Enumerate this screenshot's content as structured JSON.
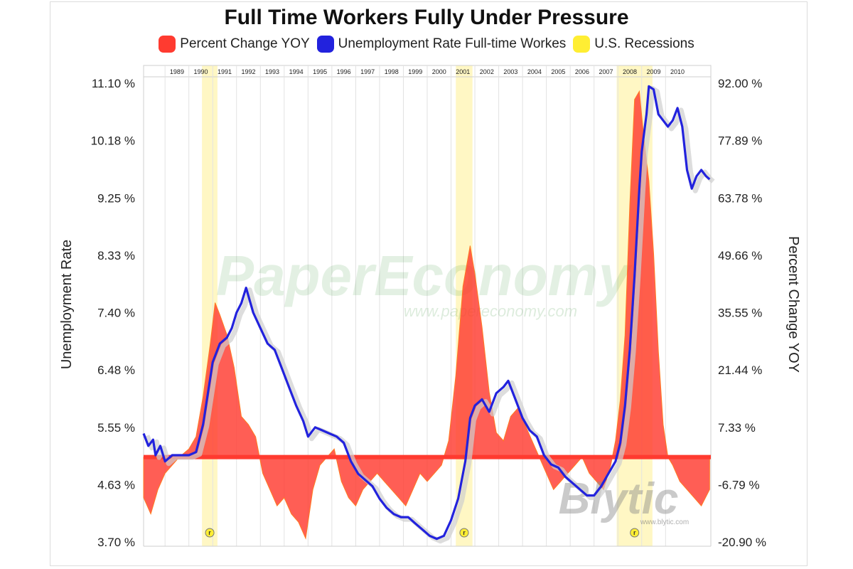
{
  "chart_data": {
    "type": "line",
    "title": "Full Time Workers Fully Under Pressure",
    "legend": [
      {
        "label": "Percent Change YOY",
        "color": "#ff3b30"
      },
      {
        "label": "Unemployment Rate Full-time Workes",
        "color": "#2222dd"
      },
      {
        "label": "U.S. Recessions",
        "color": "#ffee33"
      }
    ],
    "legend_placement": "top",
    "ylabel_left": "Unemployment Rate",
    "ylabel_right": "Percent Change YOY",
    "left_ticks": [
      "11.10 %",
      "10.18 %",
      "9.25 %",
      "8.33 %",
      "7.40 %",
      "6.48 %",
      "5.55 %",
      "4.63 %",
      "3.70 %"
    ],
    "right_ticks": [
      "92.00 %",
      "77.89 %",
      "63.78 %",
      "49.66 %",
      "35.55 %",
      "21.44 %",
      "7.33 %",
      "-6.79 %",
      "-20.90 %"
    ],
    "ylim_left": [
      3.7,
      11.1
    ],
    "ylim_right": [
      -20.9,
      92.0
    ],
    "x_range": [
      1988.1,
      2011.9
    ],
    "years": [
      "1989",
      "1990",
      "1991",
      "1992",
      "1993",
      "1994",
      "1995",
      "1996",
      "1997",
      "1998",
      "1999",
      "2000",
      "2001",
      "2002",
      "2003",
      "2004",
      "2005",
      "2006",
      "2007",
      "2008",
      "2009",
      "2010"
    ],
    "recessions": [
      [
        1990.55,
        1991.2
      ],
      [
        2001.2,
        2001.9
      ],
      [
        2007.95,
        2009.45
      ]
    ],
    "recession_marker": "r",
    "series": [
      {
        "name": "Unemployment Rate Full-time Workes",
        "axis": "left",
        "color": "#2222dd",
        "x": [
          1988.1,
          1988.3,
          1988.5,
          1988.6,
          1988.8,
          1989.0,
          1989.3,
          1989.5,
          1989.8,
          1990.0,
          1990.3,
          1990.6,
          1990.8,
          1991.0,
          1991.3,
          1991.6,
          1991.8,
          1992.0,
          1992.2,
          1992.4,
          1992.7,
          1993.0,
          1993.3,
          1993.6,
          1993.9,
          1994.2,
          1994.5,
          1994.8,
          1995.0,
          1995.3,
          1995.6,
          1995.9,
          1996.2,
          1996.5,
          1996.8,
          1997.1,
          1997.4,
          1997.7,
          1998.0,
          1998.3,
          1998.6,
          1998.9,
          1999.2,
          1999.5,
          1999.8,
          2000.1,
          2000.4,
          2000.7,
          2001.0,
          2001.3,
          2001.6,
          2001.8,
          2002.0,
          2002.3,
          2002.6,
          2002.9,
          2003.2,
          2003.4,
          2003.7,
          2004.0,
          2004.3,
          2004.6,
          2004.9,
          2005.2,
          2005.5,
          2005.8,
          2006.1,
          2006.4,
          2006.7,
          2007.0,
          2007.3,
          2007.6,
          2007.9,
          2008.1,
          2008.3,
          2008.5,
          2008.7,
          2008.9,
          2009.0,
          2009.2,
          2009.3,
          2009.5,
          2009.7,
          2009.9,
          2010.1,
          2010.3,
          2010.5,
          2010.7,
          2010.9,
          2011.1,
          2011.3,
          2011.5,
          2011.7,
          2011.85
        ],
        "y": [
          5.45,
          5.25,
          5.35,
          5.1,
          5.25,
          5.0,
          5.1,
          5.1,
          5.1,
          5.1,
          5.15,
          5.6,
          6.1,
          6.6,
          6.9,
          7.0,
          7.15,
          7.4,
          7.55,
          7.8,
          7.4,
          7.15,
          6.9,
          6.8,
          6.5,
          6.2,
          5.9,
          5.65,
          5.4,
          5.55,
          5.5,
          5.45,
          5.4,
          5.3,
          5.0,
          4.8,
          4.7,
          4.6,
          4.4,
          4.25,
          4.15,
          4.1,
          4.1,
          4.0,
          3.9,
          3.8,
          3.75,
          3.8,
          4.05,
          4.4,
          5.0,
          5.7,
          5.9,
          6.0,
          5.8,
          6.1,
          6.2,
          6.3,
          6.0,
          5.7,
          5.5,
          5.4,
          5.1,
          4.95,
          4.9,
          4.75,
          4.65,
          4.55,
          4.45,
          4.45,
          4.6,
          4.8,
          5.0,
          5.3,
          5.9,
          6.8,
          8.0,
          9.4,
          10.0,
          10.6,
          11.05,
          11.0,
          10.6,
          10.5,
          10.4,
          10.5,
          10.7,
          10.4,
          9.7,
          9.4,
          9.6,
          9.7,
          9.6,
          9.55
        ]
      },
      {
        "name": "Percent Change YOY",
        "axis": "right",
        "color": "#ff3b30",
        "x": [
          1988.1,
          1988.4,
          1988.7,
          1989.0,
          1989.3,
          1989.6,
          1990.0,
          1990.3,
          1990.6,
          1990.9,
          1991.1,
          1991.3,
          1991.6,
          1991.9,
          1992.2,
          1992.5,
          1992.8,
          1993.1,
          1993.4,
          1993.7,
          1994.0,
          1994.3,
          1994.6,
          1994.9,
          1995.2,
          1995.5,
          1995.8,
          1996.1,
          1996.4,
          1996.7,
          1997.0,
          1997.3,
          1997.6,
          1997.9,
          1998.2,
          1998.5,
          1998.8,
          1999.1,
          1999.4,
          1999.7,
          2000.0,
          2000.3,
          2000.6,
          2000.9,
          2001.2,
          2001.5,
          2001.8,
          2002.0,
          2002.3,
          2002.6,
          2002.9,
          2003.2,
          2003.5,
          2003.8,
          2004.1,
          2004.4,
          2004.7,
          2005.0,
          2005.3,
          2005.6,
          2005.9,
          2006.2,
          2006.5,
          2006.8,
          2007.1,
          2007.4,
          2007.7,
          2007.9,
          2008.1,
          2008.3,
          2008.5,
          2008.7,
          2008.9,
          2009.1,
          2009.3,
          2009.5,
          2009.7,
          2009.9,
          2010.1,
          2010.3,
          2010.6,
          2010.9,
          2011.2,
          2011.5,
          2011.85
        ],
        "y": [
          -10,
          -14,
          -8,
          -4,
          -2,
          0,
          2,
          5,
          15,
          28,
          38,
          35,
          30,
          22,
          10,
          8,
          5,
          -4,
          -8,
          -12,
          -10,
          -14,
          -16,
          -20,
          -8,
          -2,
          0,
          2,
          -6,
          -10,
          -12,
          -8,
          -6,
          -4,
          -6,
          -8,
          -10,
          -12,
          -8,
          -4,
          -6,
          -4,
          -2,
          4,
          20,
          42,
          52,
          45,
          32,
          16,
          6,
          4,
          10,
          12,
          8,
          4,
          0,
          -4,
          -8,
          -6,
          -4,
          -2,
          0,
          -4,
          -6,
          -8,
          -2,
          4,
          14,
          30,
          62,
          88,
          90,
          78,
          68,
          50,
          26,
          8,
          0,
          -2,
          -6,
          -8,
          -10,
          -12,
          -8
        ]
      }
    ]
  },
  "watermarks": {
    "main": "PaperEconomy",
    "sub": "www.papereconomy.com",
    "logo": "Blytic",
    "logo_url": "www.blytic.com"
  }
}
